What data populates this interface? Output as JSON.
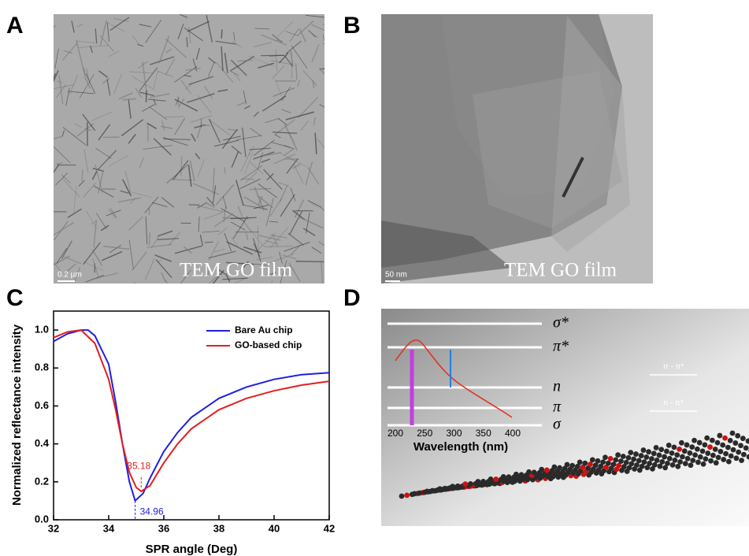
{
  "panels": {
    "A": {
      "letter": "A",
      "scale_bar": "0.2 µm",
      "caption": "TEM GO film"
    },
    "B": {
      "letter": "B",
      "scale_bar": "50 nm",
      "caption": "TEM GO film"
    },
    "C": {
      "letter": "C"
    },
    "D": {
      "letter": "D",
      "levels": [
        "σ*",
        "π*",
        "n",
        "π",
        "σ"
      ],
      "xticks": [
        200,
        250,
        300,
        350,
        400
      ],
      "xlabel": "Wavelength (nm)",
      "transitions": [
        "π - π*",
        "n - π*"
      ]
    }
  },
  "chart_data": {
    "type": "line",
    "xlabel": "SPR angle (Deg)",
    "ylabel": "Normalized reflectance intensity",
    "xlim": [
      32,
      42
    ],
    "xticks": [
      32,
      34,
      36,
      38,
      40,
      42
    ],
    "ylim": [
      0,
      1.1
    ],
    "yticks": [
      {
        "value": 0,
        "label": "0.0"
      },
      {
        "value": 0.2,
        "label": "0.2"
      },
      {
        "value": 0.4,
        "label": "0.4"
      },
      {
        "value": 0.6,
        "label": "0.6"
      },
      {
        "value": 0.8,
        "label": "0.8"
      },
      {
        "value": 1,
        "label": "1.0"
      }
    ],
    "legend": "upper right",
    "series": [
      {
        "name": "Bare Au chip",
        "color": "#1f1fe0",
        "x": [
          32,
          32.5,
          33,
          33.25,
          33.5,
          34,
          34.25,
          34.5,
          34.75,
          34.96,
          35.25,
          35.5,
          36,
          36.5,
          37,
          38,
          39,
          40,
          41,
          42
        ],
        "values": [
          0.94,
          0.98,
          1.0,
          1.0,
          0.97,
          0.82,
          0.62,
          0.4,
          0.2,
          0.1,
          0.14,
          0.22,
          0.36,
          0.46,
          0.54,
          0.64,
          0.7,
          0.74,
          0.765,
          0.775
        ]
      },
      {
        "name": "GO-based chip",
        "color": "#e02020",
        "x": [
          32,
          32.5,
          33,
          33.5,
          34,
          34.25,
          34.5,
          34.75,
          35,
          35.18,
          35.5,
          36,
          36.5,
          37,
          38,
          39,
          40,
          41,
          42
        ],
        "values": [
          0.96,
          0.99,
          1.0,
          0.93,
          0.74,
          0.58,
          0.4,
          0.25,
          0.17,
          0.15,
          0.18,
          0.3,
          0.4,
          0.48,
          0.58,
          0.64,
          0.68,
          0.71,
          0.73
        ]
      }
    ],
    "annotations": [
      {
        "label": "35.18",
        "x": 35.18,
        "y": 0.15,
        "color": "#e02020"
      },
      {
        "label": "34.96",
        "x": 34.96,
        "y": 0.1,
        "color": "#1f1fe0"
      }
    ]
  }
}
